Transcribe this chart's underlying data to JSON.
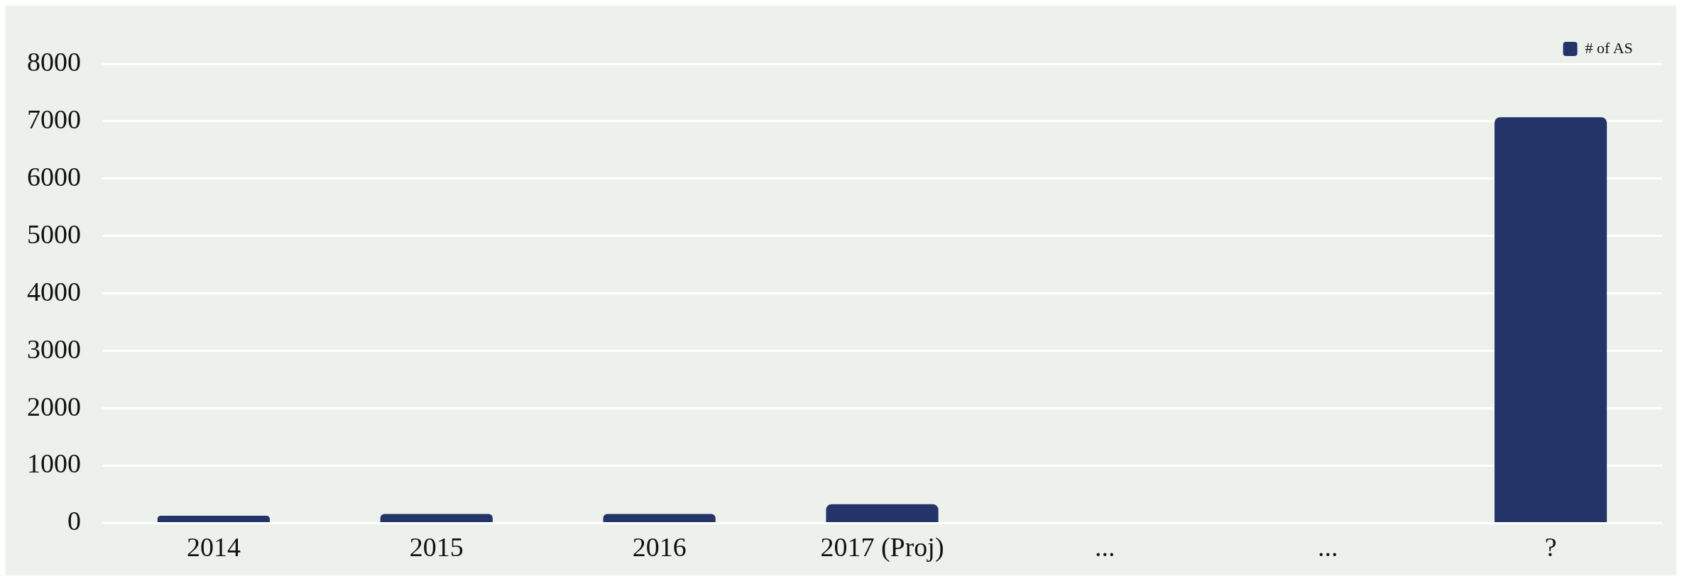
{
  "chart_data": {
    "type": "bar",
    "categories": [
      "2014",
      "2015",
      "2016",
      "2017 (Proj)",
      "...",
      "...",
      "?"
    ],
    "series": [
      {
        "name": "# of AS",
        "color": "#243469",
        "values": [
          130,
          160,
          160,
          330,
          null,
          null,
          7070
        ]
      }
    ],
    "ylim": [
      0,
      8000
    ],
    "yticks": [
      0,
      1000,
      2000,
      3000,
      4000,
      5000,
      6000,
      7000,
      8000
    ],
    "grid": "y",
    "legend": "top right"
  }
}
